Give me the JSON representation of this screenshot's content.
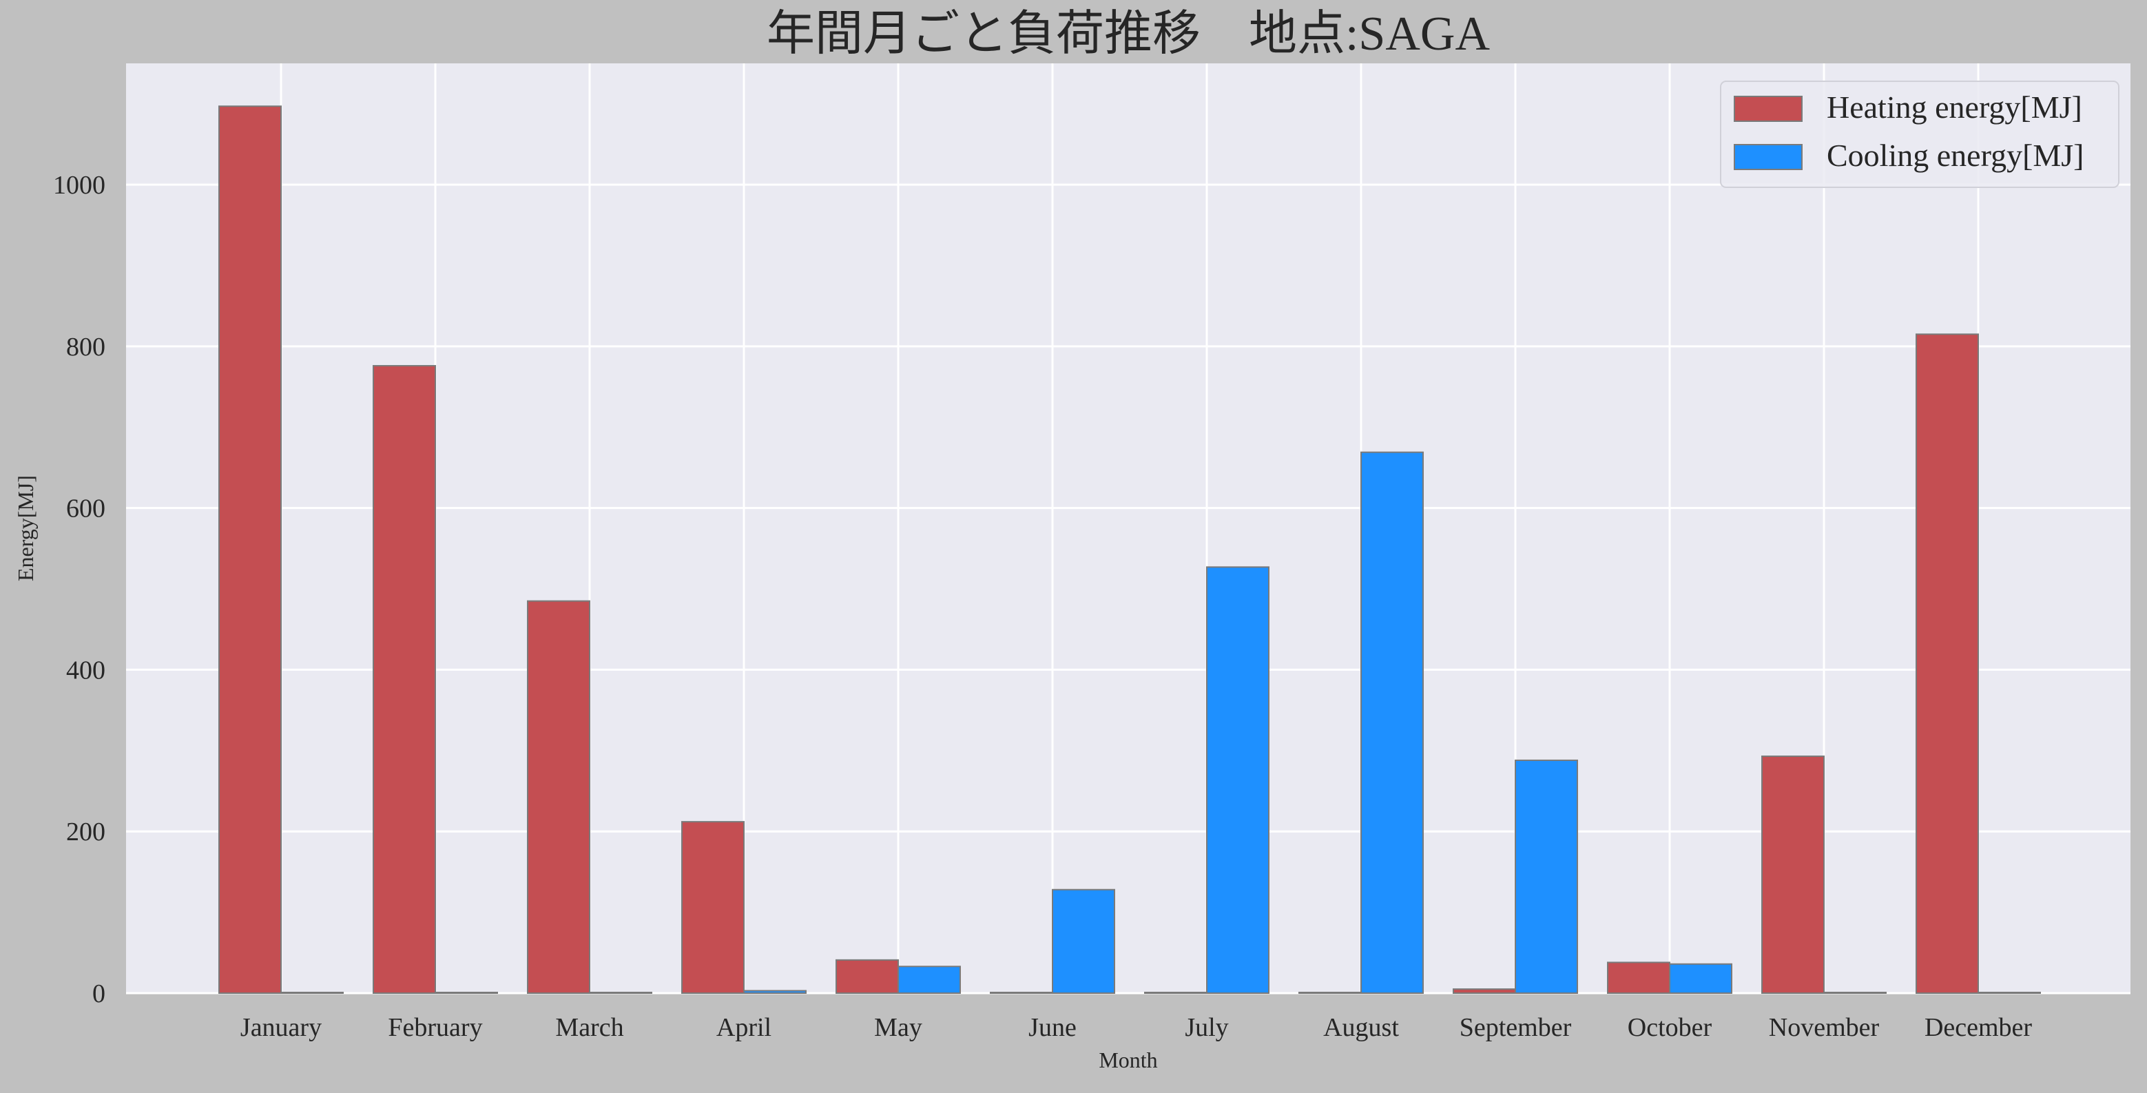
{
  "chart_data": {
    "type": "bar",
    "title": "年間月ごと負荷推移　地点:SAGA",
    "xlabel": "Month",
    "ylabel": "Energy[MJ]",
    "categories": [
      "January",
      "February",
      "March",
      "April",
      "May",
      "June",
      "July",
      "August",
      "September",
      "October",
      "November",
      "December"
    ],
    "series": [
      {
        "name": "Heating energy[MJ]",
        "color": "#c44e52",
        "values": [
          1097,
          776,
          485,
          212,
          41,
          0,
          0,
          0,
          5,
          38,
          293,
          815
        ]
      },
      {
        "name": "Cooling energy[MJ]",
        "color": "#1e90ff",
        "values": [
          0,
          0,
          0,
          3,
          33,
          128,
          527,
          669,
          288,
          36,
          0,
          0
        ]
      }
    ],
    "ylim": [
      0,
      1150
    ],
    "yticks": [
      0,
      200,
      400,
      600,
      800,
      1000
    ],
    "grid": true,
    "legend_position": "top-right",
    "plot_background": "#eaeaf2",
    "figure_background": "#c0c0c0"
  }
}
